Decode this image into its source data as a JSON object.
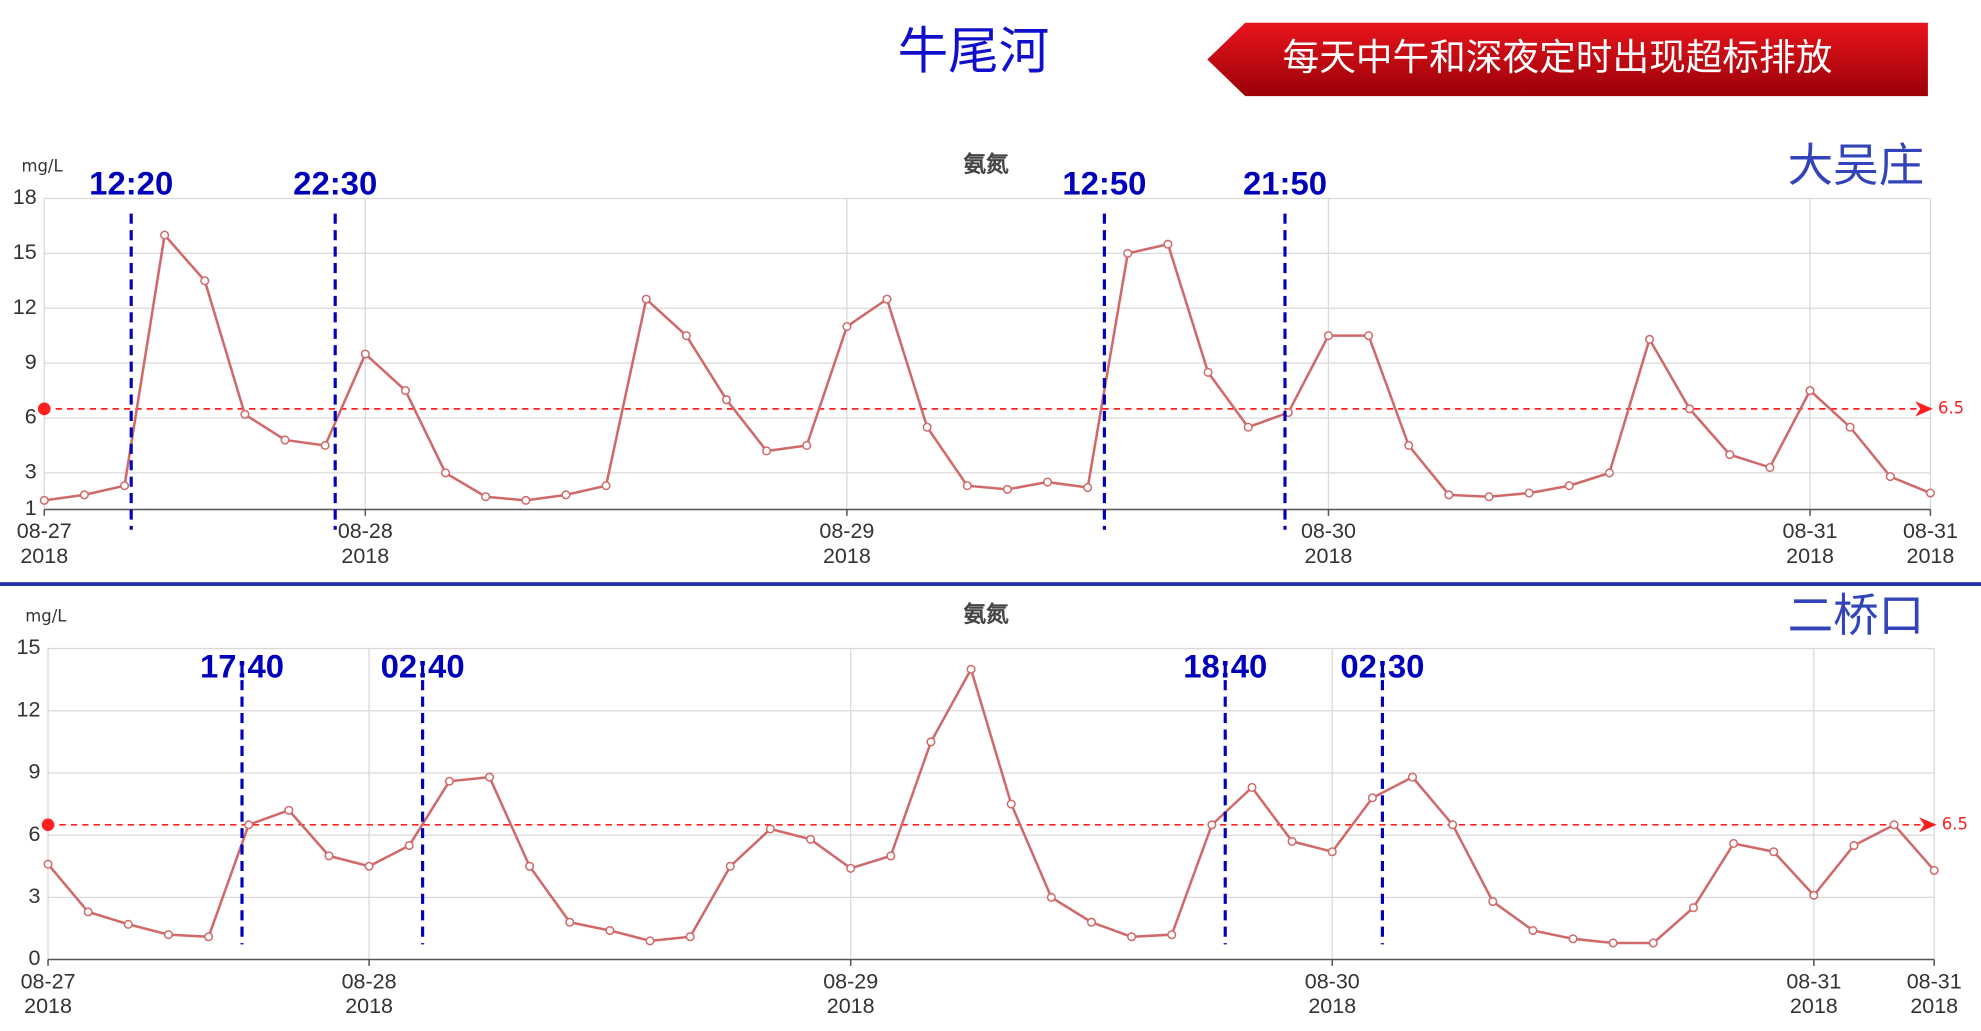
{
  "header": {
    "title": "牛尾河",
    "banner": "每天中午和深夜定时出现超标排放"
  },
  "chart_data": [
    {
      "type": "line",
      "site": "大吴庄",
      "title": "氨氮",
      "y_label": "mg/L",
      "color": "#d06a6a",
      "x": [
        "2018-08-27 08:00",
        "2018-08-27 10:00",
        "2018-08-27 12:00",
        "2018-08-27 14:00",
        "2018-08-27 16:00",
        "2018-08-27 18:00",
        "2018-08-27 20:00",
        "2018-08-27 22:00",
        "2018-08-28 00:00",
        "2018-08-28 02:00",
        "2018-08-28 04:00",
        "2018-08-28 06:00",
        "2018-08-28 08:00",
        "2018-08-28 10:00",
        "2018-08-28 12:00",
        "2018-08-28 14:00",
        "2018-08-28 16:00",
        "2018-08-28 18:00",
        "2018-08-28 20:00",
        "2018-08-28 22:00",
        "2018-08-29 00:00",
        "2018-08-29 02:00",
        "2018-08-29 04:00",
        "2018-08-29 06:00",
        "2018-08-29 08:00",
        "2018-08-29 10:00",
        "2018-08-29 12:00",
        "2018-08-29 14:00",
        "2018-08-29 16:00",
        "2018-08-29 18:00",
        "2018-08-29 20:00",
        "2018-08-29 22:00",
        "2018-08-30 00:00",
        "2018-08-30 02:00",
        "2018-08-30 04:00",
        "2018-08-30 06:00",
        "2018-08-30 08:00",
        "2018-08-30 10:00",
        "2018-08-30 12:00",
        "2018-08-30 14:00",
        "2018-08-30 16:00",
        "2018-08-30 18:00",
        "2018-08-30 20:00",
        "2018-08-30 22:00",
        "2018-08-31 00:00",
        "2018-08-31 02:00",
        "2018-08-31 04:00",
        "2018-08-31 06:00"
      ],
      "values": [
        1.5,
        1.8,
        2.3,
        16.0,
        13.5,
        6.2,
        4.8,
        4.5,
        9.5,
        7.5,
        3.0,
        1.7,
        1.5,
        1.8,
        2.3,
        12.5,
        10.5,
        7.0,
        4.2,
        4.5,
        11,
        12.5,
        5.5,
        2.3,
        2.1,
        2.5,
        2.2,
        15,
        15.5,
        8.5,
        5.5,
        6.3,
        10.5,
        10.5,
        4.5,
        1.8,
        1.7,
        1.9,
        2.3,
        3.0,
        10.3,
        6.5,
        4.0,
        3.3,
        7.5,
        5.5,
        2.8,
        1.9
      ],
      "xlim": [
        "2018-08-27 08:00",
        "2018-08-31 06:00"
      ],
      "xticks": [
        {
          "value": "2018-08-27 08:00",
          "label": "08-27\n2018"
        },
        {
          "value": "2018-08-28 00:00",
          "label": "08-28\n2018"
        },
        {
          "value": "2018-08-29 00:00",
          "label": "08-29\n2018"
        },
        {
          "value": "2018-08-30 00:00",
          "label": "08-30\n2018"
        },
        {
          "value": "2018-08-31 00:00",
          "label": "08-31\n2018"
        },
        {
          "value": "2018-08-31 06:00",
          "label": "08-31\n2018"
        }
      ],
      "ylim": [
        1,
        18
      ],
      "yticks": [
        1,
        3,
        6,
        9,
        12,
        15,
        18
      ],
      "grid": true,
      "threshold": 6.5,
      "threshold_color": "#ff2020",
      "markers": [
        {
          "x": "2018-08-27 12:20",
          "label": "12:20"
        },
        {
          "x": "2018-08-27 22:30",
          "label": "22:30"
        },
        {
          "x": "2018-08-29 12:50",
          "label": "12:50"
        },
        {
          "x": "2018-08-29 21:50",
          "label": "21:50"
        }
      ]
    },
    {
      "type": "line",
      "site": "二桥口",
      "title": "氨氮",
      "y_label": "mg/L",
      "color": "#d06a6a",
      "x": [
        "2018-08-27 08:00",
        "2018-08-27 10:00",
        "2018-08-27 12:00",
        "2018-08-27 14:00",
        "2018-08-27 16:00",
        "2018-08-27 18:00",
        "2018-08-27 20:00",
        "2018-08-27 22:00",
        "2018-08-28 00:00",
        "2018-08-28 02:00",
        "2018-08-28 04:00",
        "2018-08-28 06:00",
        "2018-08-28 08:00",
        "2018-08-28 10:00",
        "2018-08-28 12:00",
        "2018-08-28 14:00",
        "2018-08-28 16:00",
        "2018-08-28 18:00",
        "2018-08-28 20:00",
        "2018-08-28 22:00",
        "2018-08-29 00:00",
        "2018-08-29 02:00",
        "2018-08-29 04:00",
        "2018-08-29 06:00",
        "2018-08-29 08:00",
        "2018-08-29 10:00",
        "2018-08-29 12:00",
        "2018-08-29 14:00",
        "2018-08-29 16:00",
        "2018-08-29 18:00",
        "2018-08-29 20:00",
        "2018-08-29 22:00",
        "2018-08-30 00:00",
        "2018-08-30 02:00",
        "2018-08-30 04:00",
        "2018-08-30 06:00",
        "2018-08-30 08:00",
        "2018-08-30 10:00",
        "2018-08-30 12:00",
        "2018-08-30 14:00",
        "2018-08-30 16:00",
        "2018-08-30 18:00",
        "2018-08-30 20:00",
        "2018-08-30 22:00",
        "2018-08-31 00:00",
        "2018-08-31 02:00",
        "2018-08-31 04:00",
        "2018-08-31 06:00"
      ],
      "values": [
        4.6,
        2.3,
        1.7,
        1.2,
        1.1,
        6.5,
        7.2,
        5.0,
        4.5,
        5.5,
        8.6,
        8.8,
        4.5,
        1.8,
        1.4,
        0.9,
        1.1,
        4.5,
        6.3,
        5.8,
        4.4,
        5.0,
        10.5,
        14,
        7.5,
        3.0,
        1.8,
        1.1,
        1.2,
        6.5,
        8.3,
        5.7,
        5.2,
        7.8,
        8.8,
        6.5,
        2.8,
        1.4,
        1.0,
        0.8,
        0.8,
        2.5,
        5.6,
        5.2,
        3.1,
        5.5,
        6.5,
        4.3
      ],
      "xlim": [
        "2018-08-27 08:00",
        "2018-08-31 06:00"
      ],
      "xticks": [
        {
          "value": "2018-08-27 08:00",
          "label": "08-27\n2018"
        },
        {
          "value": "2018-08-28 00:00",
          "label": "08-28\n2018"
        },
        {
          "value": "2018-08-29 00:00",
          "label": "08-29\n2018"
        },
        {
          "value": "2018-08-30 00:00",
          "label": "08-30\n2018"
        },
        {
          "value": "2018-08-31 00:00",
          "label": "08-31\n2018"
        },
        {
          "value": "2018-08-31 06:00",
          "label": "08-31\n2018"
        }
      ],
      "ylim": [
        0,
        15
      ],
      "yticks": [
        0,
        3,
        6,
        9,
        12,
        15
      ],
      "grid": true,
      "threshold": 6.5,
      "threshold_color": "#ff2020",
      "markers": [
        {
          "x": "2018-08-27 17:40",
          "label": "17:40"
        },
        {
          "x": "2018-08-28 02:40",
          "label": "02:40"
        },
        {
          "x": "2018-08-29 18:40",
          "label": "18:40"
        },
        {
          "x": "2018-08-30 02:30",
          "label": "02:30"
        }
      ]
    }
  ]
}
